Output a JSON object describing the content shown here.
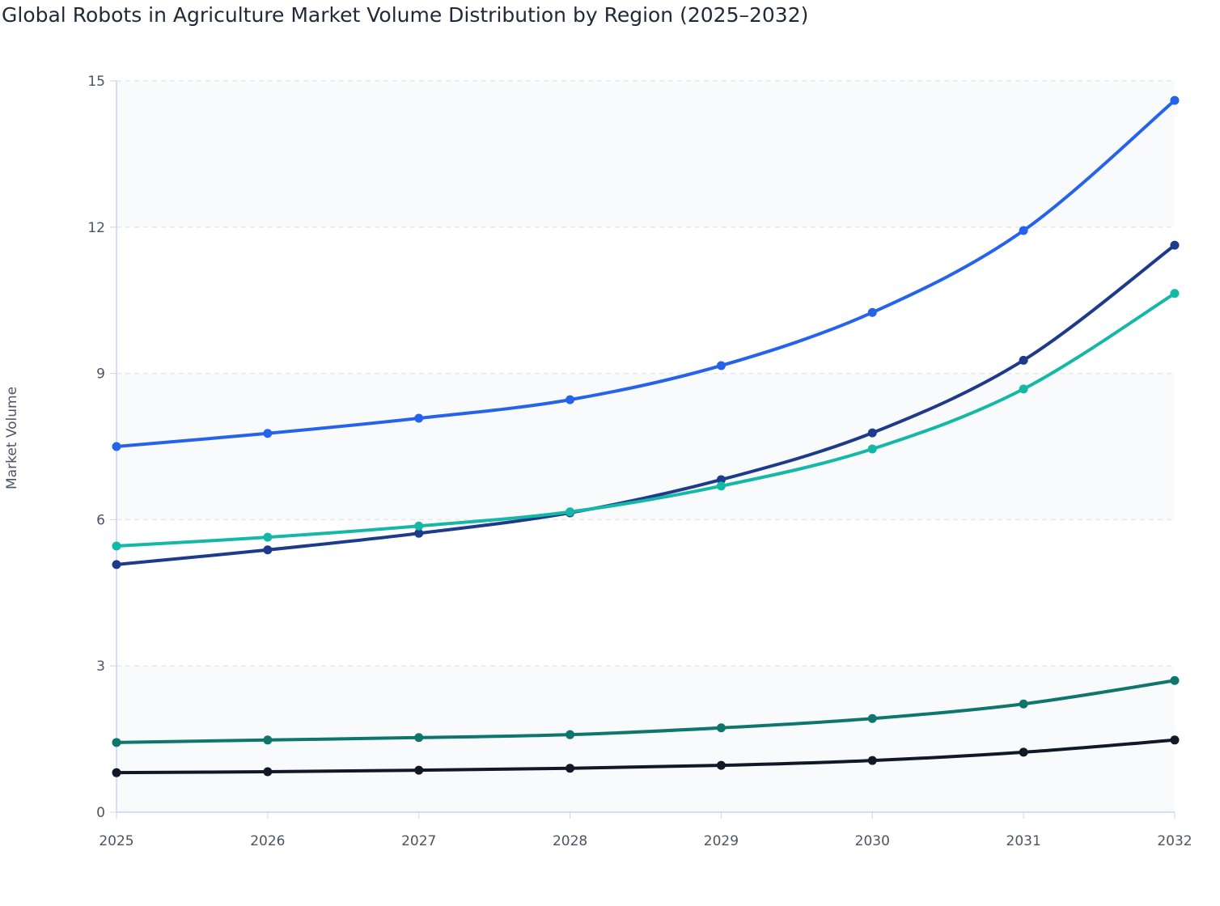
{
  "chart_data": {
    "type": "line",
    "title": "Global Robots in Agriculture Market Volume Distribution by Region (2025–2032)",
    "xlabel": "",
    "ylabel": "Market Volume",
    "x": [
      2025,
      2026,
      2027,
      2028,
      2029,
      2030,
      2031,
      2032
    ],
    "ylim": [
      0,
      15
    ],
    "yticks": [
      0,
      3,
      6,
      9,
      12,
      15
    ],
    "grid": true,
    "legend": "none",
    "series": [
      {
        "color": "#2563eb",
        "values": [
          7.5,
          7.77,
          8.08,
          8.46,
          9.16,
          10.25,
          11.93,
          14.6
        ]
      },
      {
        "color": "#1e3a8a",
        "values": [
          5.08,
          5.38,
          5.72,
          6.14,
          6.82,
          7.78,
          9.27,
          11.63
        ]
      },
      {
        "color": "#14b8a6",
        "values": [
          5.46,
          5.64,
          5.87,
          6.16,
          6.69,
          7.45,
          8.68,
          10.64
        ]
      },
      {
        "color": "#0f766e",
        "values": [
          1.43,
          1.48,
          1.53,
          1.59,
          1.73,
          1.92,
          2.22,
          2.7
        ]
      },
      {
        "color": "#111827",
        "values": [
          0.81,
          0.83,
          0.86,
          0.9,
          0.96,
          1.06,
          1.23,
          1.48
        ]
      }
    ]
  }
}
